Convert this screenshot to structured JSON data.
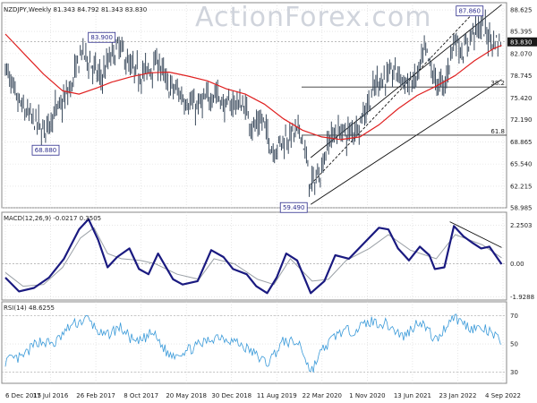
{
  "chart_data": {
    "type": "line",
    "watermark": "ActionForex.com",
    "x_ticks": [
      "6 Dec 2015",
      "17 Jul 2016",
      "26 Feb 2017",
      "8 Oct 2017",
      "20 May 2018",
      "30 Dec 2018",
      "11 Aug 2019",
      "22 Mar 2020",
      "1 Nov 2020",
      "13 Jun 2021",
      "23 Jan 2022",
      "4 Sep 2022"
    ],
    "panels": [
      {
        "id": "price",
        "header": "NZDJPY,Weekly  81.343 84.792 81.343 83.830",
        "ylim": [
          58.985,
          89.7
        ],
        "y_ticks": [
          "88.625",
          "85.395",
          "82.070",
          "78.745",
          "75.420",
          "72.190",
          "68.865",
          "65.540",
          "62.215",
          "58.985"
        ],
        "last_price": "83.830",
        "annotations": [
          {
            "text": "83.900",
            "x": "2017-04-23",
            "y": 83.9
          },
          {
            "text": "68.880",
            "x": "2015-12-06",
            "y": 68.88
          },
          {
            "text": "59.490",
            "x": "2020-03-22",
            "y": 59.49
          },
          {
            "text": "87.860",
            "x": "2022-04-17",
            "y": 87.86
          }
        ],
        "fib_levels": [
          {
            "text": "38.2",
            "y": 77.07
          },
          {
            "text": "61.8",
            "y": 69.86
          }
        ],
        "series_close": [
          [
            "2015-12-06",
            80.2
          ],
          [
            "2016-01-24",
            75.5
          ],
          [
            "2016-03-13",
            73.5
          ],
          [
            "2016-05-01",
            72.0
          ],
          [
            "2016-06-19",
            70.5
          ],
          [
            "2016-08-07",
            73.0
          ],
          [
            "2016-09-25",
            74.5
          ],
          [
            "2016-11-13",
            77.5
          ],
          [
            "2017-01-01",
            82.5
          ],
          [
            "2017-02-19",
            80.5
          ],
          [
            "2017-04-09",
            78.2
          ],
          [
            "2017-05-28",
            81.5
          ],
          [
            "2017-07-16",
            83.2
          ],
          [
            "2017-09-03",
            80.0
          ],
          [
            "2017-10-22",
            79.0
          ],
          [
            "2017-12-10",
            79.5
          ],
          [
            "2018-01-28",
            81.0
          ],
          [
            "2018-03-18",
            77.2
          ],
          [
            "2018-05-06",
            76.5
          ],
          [
            "2018-06-24",
            75.0
          ],
          [
            "2018-08-12",
            74.0
          ],
          [
            "2018-09-30",
            75.0
          ],
          [
            "2018-11-18",
            76.5
          ],
          [
            "2019-01-06",
            74.0
          ],
          [
            "2019-02-24",
            74.8
          ],
          [
            "2019-04-14",
            74.2
          ],
          [
            "2019-06-02",
            71.0
          ],
          [
            "2019-07-21",
            72.0
          ],
          [
            "2019-09-08",
            67.5
          ],
          [
            "2019-10-27",
            69.0
          ],
          [
            "2019-12-15",
            70.0
          ],
          [
            "2020-02-02",
            70.5
          ],
          [
            "2020-03-22",
            62.0
          ],
          [
            "2020-05-10",
            64.5
          ],
          [
            "2020-06-28",
            69.5
          ],
          [
            "2020-08-16",
            70.5
          ],
          [
            "2020-10-04",
            70.0
          ],
          [
            "2020-11-22",
            71.5
          ],
          [
            "2021-01-10",
            74.5
          ],
          [
            "2021-02-28",
            78.0
          ],
          [
            "2021-04-18",
            78.5
          ],
          [
            "2021-06-06",
            79.5
          ],
          [
            "2021-07-25",
            77.5
          ],
          [
            "2021-09-12",
            78.0
          ],
          [
            "2021-10-31",
            82.5
          ],
          [
            "2021-12-19",
            78.0
          ],
          [
            "2022-02-06",
            77.0
          ],
          [
            "2022-03-27",
            84.5
          ],
          [
            "2022-05-15",
            82.0
          ],
          [
            "2022-07-03",
            85.5
          ],
          [
            "2022-08-21",
            86.0
          ],
          [
            "2022-10-09",
            84.0
          ],
          [
            "2022-11-27",
            83.83
          ]
        ],
        "series_ma": [
          [
            "2015-12-06",
            85.0
          ],
          [
            "2016-03-13",
            82.0
          ],
          [
            "2016-06-19",
            79.0
          ],
          [
            "2016-09-25",
            76.5
          ],
          [
            "2016-12-18",
            76.0
          ],
          [
            "2017-03-26",
            77.0
          ],
          [
            "2017-06-04",
            77.8
          ],
          [
            "2017-09-10",
            78.6
          ],
          [
            "2017-12-17",
            79.2
          ],
          [
            "2018-03-25",
            79.3
          ],
          [
            "2018-07-01",
            78.7
          ],
          [
            "2018-10-07",
            78.0
          ],
          [
            "2019-01-13",
            76.8
          ],
          [
            "2019-04-21",
            76.0
          ],
          [
            "2019-07-28",
            74.5
          ],
          [
            "2019-11-03",
            72.3
          ],
          [
            "2020-02-09",
            70.6
          ],
          [
            "2020-05-17",
            69.6
          ],
          [
            "2020-08-23",
            69.2
          ],
          [
            "2020-11-29",
            69.6
          ],
          [
            "2021-03-07",
            71.4
          ],
          [
            "2021-06-13",
            73.8
          ],
          [
            "2021-09-19",
            75.8
          ],
          [
            "2021-12-26",
            77.2
          ],
          [
            "2022-04-03",
            78.8
          ],
          [
            "2022-07-10",
            81.0
          ],
          [
            "2022-10-16",
            82.8
          ],
          [
            "2022-11-27",
            83.3
          ]
        ],
        "channel_lines": [
          [
            [
              "2020-03-22",
              59.49
            ],
            [
              "2022-11-27",
              78.2
            ]
          ],
          [
            [
              "2020-03-22",
              66.5
            ],
            [
              "2022-11-27",
              89.4
            ]
          ]
        ],
        "channel_mid": [
          [
            "2020-03-22",
            62.5
          ],
          [
            "2022-06-26",
            87.9
          ]
        ]
      },
      {
        "id": "macd",
        "header": "MACD(12,26,9) -0.0217 0.3505",
        "ylim": [
          -2.1,
          3.0
        ],
        "y_ticks": [
          "2.2503",
          "0.00",
          "-1.9288"
        ],
        "macd": [
          [
            "2015-12-06",
            -0.8
          ],
          [
            "2016-02-14",
            -1.6
          ],
          [
            "2016-05-01",
            -1.4
          ],
          [
            "2016-07-17",
            -0.8
          ],
          [
            "2016-10-02",
            0.3
          ],
          [
            "2016-12-18",
            2.0
          ],
          [
            "2017-02-05",
            2.6
          ],
          [
            "2017-03-26",
            1.4
          ],
          [
            "2017-05-14",
            -0.2
          ],
          [
            "2017-07-02",
            0.4
          ],
          [
            "2017-09-03",
            0.9
          ],
          [
            "2017-10-22",
            -0.3
          ],
          [
            "2017-12-10",
            -0.6
          ],
          [
            "2018-01-28",
            0.6
          ],
          [
            "2018-04-15",
            -0.9
          ],
          [
            "2018-06-03",
            -1.2
          ],
          [
            "2018-08-19",
            -1.0
          ],
          [
            "2018-10-28",
            0.8
          ],
          [
            "2018-12-30",
            0.4
          ],
          [
            "2019-02-17",
            -0.3
          ],
          [
            "2019-04-28",
            -0.6
          ],
          [
            "2019-06-16",
            -1.3
          ],
          [
            "2019-08-11",
            -1.7
          ],
          [
            "2019-09-29",
            -0.8
          ],
          [
            "2019-11-17",
            0.6
          ],
          [
            "2020-01-12",
            0.2
          ],
          [
            "2020-03-22",
            -1.7
          ],
          [
            "2020-05-31",
            -1.0
          ],
          [
            "2020-07-26",
            0.5
          ],
          [
            "2020-10-04",
            0.3
          ],
          [
            "2020-12-20",
            1.2
          ],
          [
            "2021-03-07",
            2.1
          ],
          [
            "2021-04-25",
            2.0
          ],
          [
            "2021-06-13",
            0.9
          ],
          [
            "2021-08-08",
            0.2
          ],
          [
            "2021-10-03",
            1.0
          ],
          [
            "2021-11-21",
            0.5
          ],
          [
            "2021-12-19",
            -0.3
          ],
          [
            "2022-02-06",
            -0.2
          ],
          [
            "2022-03-27",
            2.2
          ],
          [
            "2022-05-15",
            1.6
          ],
          [
            "2022-07-03",
            1.2
          ],
          [
            "2022-08-14",
            0.9
          ],
          [
            "2022-09-25",
            1.0
          ],
          [
            "2022-11-27",
            -0.02
          ]
        ],
        "signal": [
          [
            "2015-12-06",
            -0.5
          ],
          [
            "2016-03-06",
            -1.3
          ],
          [
            "2016-06-19",
            -1.2
          ],
          [
            "2016-09-25",
            -0.2
          ],
          [
            "2016-12-25",
            1.5
          ],
          [
            "2017-03-05",
            2.1
          ],
          [
            "2017-05-14",
            0.6
          ],
          [
            "2017-07-23",
            0.3
          ],
          [
            "2017-10-29",
            0.2
          ],
          [
            "2018-01-14",
            0.0
          ],
          [
            "2018-05-06",
            -0.6
          ],
          [
            "2018-08-26",
            -0.9
          ],
          [
            "2018-11-11",
            0.3
          ],
          [
            "2019-02-24",
            0.0
          ],
          [
            "2019-06-23",
            -0.9
          ],
          [
            "2019-09-15",
            -1.2
          ],
          [
            "2019-12-08",
            0.3
          ],
          [
            "2020-03-29",
            -1.0
          ],
          [
            "2020-06-21",
            -0.9
          ],
          [
            "2020-09-20",
            0.2
          ],
          [
            "2021-01-17",
            0.9
          ],
          [
            "2021-04-25",
            1.7
          ],
          [
            "2021-08-15",
            0.8
          ],
          [
            "2021-12-26",
            0.3
          ],
          [
            "2022-04-03",
            1.7
          ],
          [
            "2022-08-21",
            1.1
          ],
          [
            "2022-11-27",
            0.35
          ]
        ],
        "trendline": [
          [
            "2022-03-06",
            2.45
          ],
          [
            "2022-11-27",
            0.95
          ]
        ]
      },
      {
        "id": "rsi",
        "header": "RSI(14) 48.6255",
        "ylim": [
          22,
          80
        ],
        "y_ticks": [
          "70",
          "50",
          "30"
        ],
        "rsi": [
          [
            "2015-12-06",
            38
          ],
          [
            "2016-02-28",
            40
          ],
          [
            "2016-05-22",
            52
          ],
          [
            "2016-08-14",
            50
          ],
          [
            "2016-11-06",
            63
          ],
          [
            "2017-01-29",
            68
          ],
          [
            "2017-04-23",
            55
          ],
          [
            "2017-07-16",
            62
          ],
          [
            "2017-10-08",
            50
          ],
          [
            "2017-12-31",
            58
          ],
          [
            "2018-03-25",
            42
          ],
          [
            "2018-06-17",
            45
          ],
          [
            "2018-09-09",
            50
          ],
          [
            "2018-12-02",
            56
          ],
          [
            "2019-02-24",
            52
          ],
          [
            "2019-05-19",
            45
          ],
          [
            "2019-08-11",
            36
          ],
          [
            "2019-11-03",
            52
          ],
          [
            "2020-01-26",
            50
          ],
          [
            "2020-03-22",
            30
          ],
          [
            "2020-05-17",
            45
          ],
          [
            "2020-08-09",
            58
          ],
          [
            "2020-11-01",
            60
          ],
          [
            "2021-01-24",
            66
          ],
          [
            "2021-04-18",
            64
          ],
          [
            "2021-07-11",
            55
          ],
          [
            "2021-10-03",
            67
          ],
          [
            "2021-12-26",
            52
          ],
          [
            "2022-03-20",
            70
          ],
          [
            "2022-06-12",
            62
          ],
          [
            "2022-09-04",
            60
          ],
          [
            "2022-10-30",
            55
          ],
          [
            "2022-11-27",
            48.6
          ]
        ]
      }
    ]
  }
}
